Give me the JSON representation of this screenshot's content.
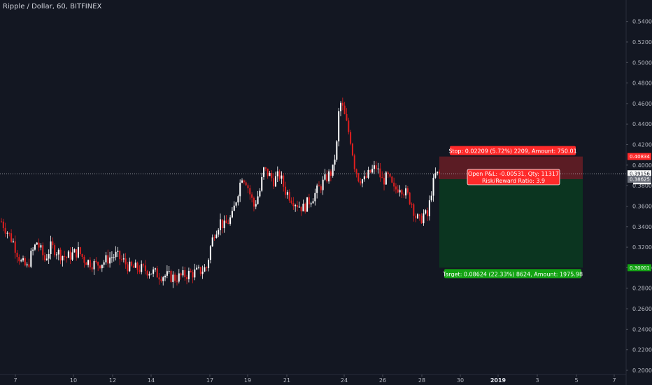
{
  "header": {
    "title": "Ripple / Dollar, 60, BITFINEX"
  },
  "colors": {
    "background": "#131722",
    "up": "#ffffff",
    "down": "#e01f1f",
    "stop_zone": "#5b1c24",
    "target_zone": "#0b3520",
    "stop_badge": "#ff2a2a",
    "target_badge": "#13a313"
  },
  "chart_data": {
    "type": "candlestick",
    "title": "Ripple / Dollar, 60, BITFINEX",
    "ylim": [
      0.2,
      0.55
    ],
    "y_ticks": [
      "0.54000",
      "0.52000",
      "0.50000",
      "0.48000",
      "0.46000",
      "0.44000",
      "0.42000",
      "0.40000",
      "0.38000",
      "0.36000",
      "0.34000",
      "0.32000",
      "0.30000",
      "0.28000",
      "0.26000",
      "0.24000",
      "0.22000",
      "0.20000"
    ],
    "x_ticks": [
      "7",
      "10",
      "12",
      "14",
      "17",
      "19",
      "21",
      "24",
      "26",
      "28",
      "30",
      "2019",
      "3",
      "5",
      "7"
    ],
    "grid": false,
    "close_path": [
      [
        0,
        0.345
      ],
      [
        3,
        0.335
      ],
      [
        6,
        0.325
      ],
      [
        8,
        0.315
      ],
      [
        10,
        0.305
      ],
      [
        13,
        0.3
      ],
      [
        15,
        0.312
      ],
      [
        18,
        0.325
      ],
      [
        22,
        0.308
      ],
      [
        25,
        0.32
      ],
      [
        27,
        0.318
      ],
      [
        30,
        0.313
      ],
      [
        33,
        0.31
      ],
      [
        36,
        0.313
      ],
      [
        39,
        0.316
      ],
      [
        42,
        0.308
      ],
      [
        45,
        0.305
      ],
      [
        48,
        0.303
      ],
      [
        52,
        0.306
      ],
      [
        55,
        0.31
      ],
      [
        58,
        0.312
      ],
      [
        62,
        0.306
      ],
      [
        65,
        0.3
      ],
      [
        70,
        0.299
      ],
      [
        75,
        0.297
      ],
      [
        80,
        0.293
      ],
      [
        84,
        0.292
      ],
      [
        88,
        0.29
      ],
      [
        92,
        0.292
      ],
      [
        95,
        0.294
      ],
      [
        100,
        0.296
      ],
      [
        104,
        0.3
      ],
      [
        106,
        0.32
      ],
      [
        108,
        0.335
      ],
      [
        111,
        0.345
      ],
      [
        113,
        0.34
      ],
      [
        117,
        0.35
      ],
      [
        120,
        0.375
      ],
      [
        122,
        0.39
      ],
      [
        124,
        0.385
      ],
      [
        126,
        0.372
      ],
      [
        128,
        0.36
      ],
      [
        131,
        0.375
      ],
      [
        133,
        0.395
      ],
      [
        135,
        0.392
      ],
      [
        138,
        0.385
      ],
      [
        141,
        0.39
      ],
      [
        144,
        0.375
      ],
      [
        147,
        0.368
      ],
      [
        150,
        0.362
      ],
      [
        153,
        0.358
      ],
      [
        156,
        0.365
      ],
      [
        159,
        0.372
      ],
      [
        162,
        0.38
      ],
      [
        165,
        0.388
      ],
      [
        168,
        0.395
      ],
      [
        170,
        0.42
      ],
      [
        171,
        0.45
      ],
      [
        172,
        0.46
      ],
      [
        173,
        0.455
      ],
      [
        175,
        0.44
      ],
      [
        177,
        0.425
      ],
      [
        179,
        0.4
      ],
      [
        181,
        0.388
      ],
      [
        184,
        0.385
      ],
      [
        187,
        0.393
      ],
      [
        190,
        0.398
      ],
      [
        193,
        0.385
      ],
      [
        196,
        0.388
      ],
      [
        199,
        0.375
      ],
      [
        202,
        0.38
      ],
      [
        206,
        0.37
      ],
      [
        208,
        0.363
      ],
      [
        210,
        0.35
      ],
      [
        212,
        0.345
      ],
      [
        214,
        0.352
      ],
      [
        216,
        0.35
      ],
      [
        218,
        0.375
      ],
      [
        220,
        0.39
      ],
      [
        222,
        0.391
      ]
    ],
    "last_price": 0.39156,
    "countdown": "56:03",
    "position": {
      "entry": 0.38625,
      "stop": 0.40834,
      "target": 0.30001,
      "stop_label": "Stop: 0.02209 (5.72%) 2209, Amount: 750.01",
      "pl_label": "Open P&L: -0.00531, Qty: 11317",
      "rr_label": "Risk/Reward Ratio: 3.9",
      "target_label": "Target: 0.08624 (22.33%) 8624, Amount: 1975.98",
      "stop_badge": "0.40834",
      "entry_badge": "0.38625",
      "target_badge": "0.30001",
      "last_badge": "0.39156"
    }
  }
}
